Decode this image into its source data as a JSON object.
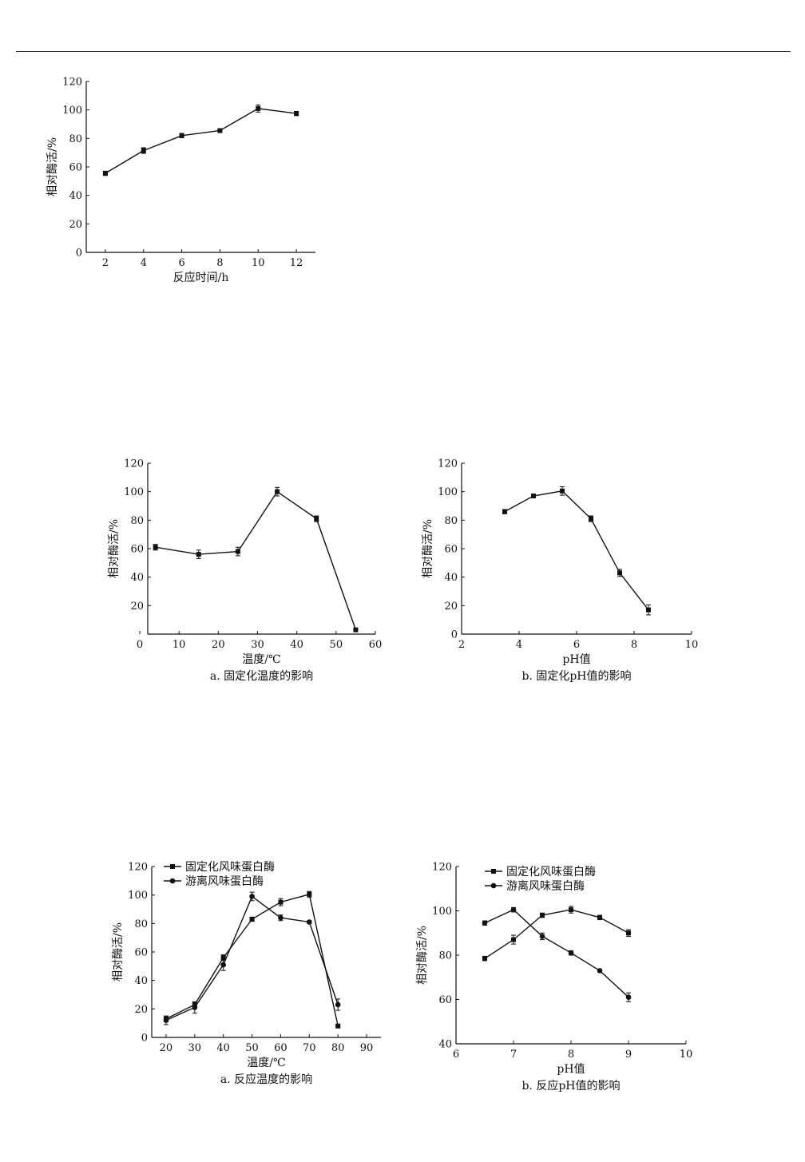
{
  "chart_data": [
    {
      "type": "line",
      "id": "c1",
      "xlabel": "反应时间/h",
      "ylabel": "相对酶活/%",
      "caption": "",
      "xlim": [
        1,
        13
      ],
      "ylim": [
        0,
        120
      ],
      "xticks": [
        2,
        4,
        6,
        8,
        10,
        12
      ],
      "yticks": [
        0,
        20,
        40,
        60,
        80,
        100,
        120
      ],
      "legend": [],
      "series": [
        {
          "name": "",
          "marker": "square",
          "x": [
            2,
            4,
            6,
            8,
            10,
            12
          ],
          "values": [
            55.5,
            71.5,
            82,
            85.5,
            101,
            97.5
          ],
          "err": [
            1.5,
            2,
            1.5,
            1,
            2.5,
            1.5
          ]
        }
      ]
    },
    {
      "type": "line",
      "id": "c2",
      "xlabel": "温度/℃",
      "ylabel": "相对酶活/%",
      "caption": "a. 固定化温度的影响",
      "xlim": [
        0,
        60
      ],
      "ylim": [
        0,
        120
      ],
      "xticks": [
        0,
        10,
        20,
        30,
        40,
        50,
        60
      ],
      "yticks": [
        20,
        40,
        60,
        80,
        100,
        120
      ],
      "legend": [],
      "series": [
        {
          "name": "",
          "marker": "square",
          "x": [
            4,
            15,
            25,
            35,
            45,
            55
          ],
          "values": [
            61,
            56,
            58,
            100,
            81,
            3
          ],
          "err": [
            2,
            3,
            3,
            3,
            2,
            1
          ]
        }
      ]
    },
    {
      "type": "line",
      "id": "c3",
      "xlabel": "pH值",
      "ylabel": "相对酶活/%",
      "caption": "b. 固定化pH值的影响",
      "xlim": [
        2,
        10
      ],
      "ylim": [
        0,
        120
      ],
      "xticks": [
        2,
        4,
        6,
        8,
        10
      ],
      "yticks": [
        0,
        20,
        40,
        60,
        80,
        100,
        120
      ],
      "legend": [],
      "series": [
        {
          "name": "",
          "marker": "square",
          "x": [
            3.5,
            4.5,
            5.5,
            6.5,
            7.5,
            8.5
          ],
          "values": [
            86,
            97,
            100.5,
            81,
            43,
            17
          ],
          "err": [
            1.5,
            1,
            3,
            2,
            2.5,
            3.5
          ]
        }
      ]
    },
    {
      "type": "line",
      "id": "c4",
      "xlabel": "温度/℃",
      "ylabel": "相对酶活/%",
      "caption": "a. 反应温度的影响",
      "xlim": [
        15,
        95
      ],
      "ylim": [
        0,
        120
      ],
      "xticks": [
        20,
        30,
        40,
        50,
        60,
        70,
        80,
        90
      ],
      "yticks": [
        0,
        20,
        40,
        60,
        80,
        100,
        120
      ],
      "legend": [
        "固定化风味蛋白酶",
        "游离风味蛋白酶"
      ],
      "series": [
        {
          "name": "固定化风味蛋白酶",
          "marker": "square",
          "x": [
            20,
            30,
            40,
            50,
            60,
            70,
            80
          ],
          "values": [
            13,
            23,
            56,
            83,
            95,
            100.5,
            8
          ],
          "err": [
            2,
            2,
            2,
            1.5,
            2.5,
            2,
            1
          ]
        },
        {
          "name": "游离风味蛋白酶",
          "marker": "circle",
          "x": [
            20,
            30,
            40,
            50,
            60,
            70,
            80
          ],
          "values": [
            12,
            21,
            51,
            99,
            84,
            81,
            23
          ],
          "err": [
            3,
            4,
            4,
            3,
            2,
            1,
            4
          ]
        }
      ]
    },
    {
      "type": "line",
      "id": "c5",
      "xlabel": "pH值",
      "ylabel": "相对酶活/%",
      "caption": "b. 反应pH值的影响",
      "xlim": [
        6,
        10
      ],
      "ylim": [
        40,
        120
      ],
      "xticks": [
        6,
        7,
        8,
        9,
        10
      ],
      "yticks": [
        40,
        60,
        80,
        100,
        120
      ],
      "legend": [
        "固定化风味蛋白酶",
        "游离风味蛋白酶"
      ],
      "series": [
        {
          "name": "固定化风味蛋白酶",
          "marker": "square",
          "x": [
            6.5,
            7,
            7.5,
            8,
            8.5,
            9
          ],
          "values": [
            78.5,
            87,
            98,
            100.5,
            97,
            90
          ],
          "err": [
            1,
            2,
            1,
            1.5,
            1,
            1.5
          ]
        },
        {
          "name": "游离风味蛋白酶",
          "marker": "circle",
          "x": [
            6.5,
            7,
            7.5,
            8,
            8.5,
            9
          ],
          "values": [
            94.5,
            100.5,
            88.5,
            81,
            73,
            61
          ],
          "err": [
            1,
            1,
            1.5,
            1,
            0.5,
            2
          ]
        }
      ]
    }
  ]
}
